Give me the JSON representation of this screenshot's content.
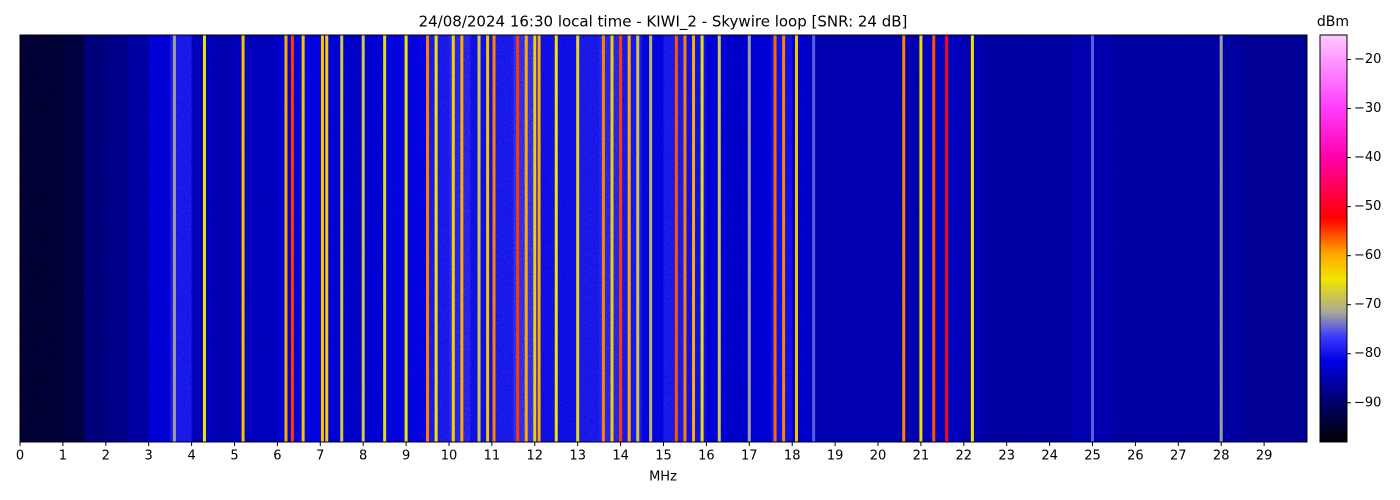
{
  "chart_data": {
    "type": "spectrogram",
    "title": "24/08/2024 16:30 local time - KIWI_2 - Skywire loop [SNR: 24 dB]",
    "xlabel": "MHz",
    "zlabel": "dBm",
    "xlim": [
      0,
      30
    ],
    "xticks": [
      0,
      1,
      2,
      3,
      4,
      5,
      6,
      7,
      8,
      9,
      10,
      11,
      12,
      13,
      14,
      15,
      16,
      17,
      18,
      19,
      20,
      21,
      22,
      23,
      24,
      25,
      26,
      27,
      28,
      29
    ],
    "zlim": [
      -98,
      -15
    ],
    "zticks": [
      {
        "value": -90,
        "label": "−90"
      },
      {
        "value": -80,
        "label": "−80"
      },
      {
        "value": -70,
        "label": "−70"
      },
      {
        "value": -60,
        "label": "−60"
      },
      {
        "value": -50,
        "label": "−50"
      },
      {
        "value": -40,
        "label": "−40"
      },
      {
        "value": -30,
        "label": "−30"
      },
      {
        "value": -20,
        "label": "−20"
      }
    ],
    "background": {
      "x": [
        0.25,
        0.75,
        1.25,
        1.75,
        2.25,
        2.75,
        3.25,
        3.75,
        4.25,
        4.75,
        5.25,
        5.75,
        6.25,
        6.75,
        7.25,
        7.75,
        8.25,
        8.75,
        9.25,
        9.75,
        10.25,
        10.75,
        11.25,
        11.75,
        12.25,
        12.75,
        13.25,
        13.75,
        14.25,
        14.75,
        15.25,
        15.75,
        16.25,
        16.75,
        17.25,
        17.75,
        18.25,
        18.75,
        19.25,
        19.75,
        20.25,
        20.75,
        21.25,
        21.75,
        22.25,
        22.75,
        23.25,
        23.75,
        24.25,
        24.75,
        25.25,
        25.75,
        26.25,
        26.75,
        27.25,
        27.75,
        28.25,
        28.75,
        29.25,
        29.75
      ],
      "values": [
        -95,
        -95,
        -94,
        -89,
        -88,
        -86,
        -82,
        -79,
        -84,
        -85,
        -84,
        -84,
        -82,
        -81,
        -82,
        -83,
        -82,
        -81,
        -81,
        -79,
        -78,
        -80,
        -79,
        -77,
        -80,
        -80,
        -79,
        -78,
        -79,
        -81,
        -79,
        -80,
        -82,
        -83,
        -82,
        -80,
        -83,
        -85,
        -85,
        -85,
        -85,
        -85,
        -84,
        -84,
        -85,
        -86,
        -86,
        -86,
        -86,
        -85,
        -85,
        -86,
        -86,
        -86,
        -86,
        -86,
        -86,
        -87,
        -87,
        -87
      ]
    },
    "carriers": {
      "x": [
        3.6,
        4.3,
        5.2,
        6.2,
        6.35,
        6.6,
        7.05,
        7.15,
        7.5,
        8.0,
        8.5,
        9.0,
        9.5,
        9.7,
        10.1,
        10.3,
        10.7,
        10.9,
        11.05,
        11.6,
        11.8,
        12.0,
        12.1,
        12.5,
        13.0,
        13.6,
        13.8,
        14.0,
        14.2,
        14.4,
        14.7,
        15.3,
        15.5,
        15.7,
        15.9,
        16.3,
        17.0,
        17.6,
        17.8,
        18.1,
        18.5,
        20.6,
        21.0,
        21.3,
        21.6,
        22.2,
        25.0,
        28.0
      ],
      "values": [
        -72,
        -65,
        -62,
        -60,
        -55,
        -62,
        -62,
        -63,
        -68,
        -68,
        -66,
        -65,
        -58,
        -65,
        -63,
        -60,
        -68,
        -62,
        -58,
        -55,
        -60,
        -63,
        -60,
        -65,
        -66,
        -58,
        -63,
        -55,
        -60,
        -68,
        -70,
        -56,
        -58,
        -60,
        -66,
        -68,
        -72,
        -57,
        -58,
        -62,
        -75,
        -58,
        -64,
        -56,
        -50,
        -65,
        -75,
        -72
      ]
    }
  }
}
